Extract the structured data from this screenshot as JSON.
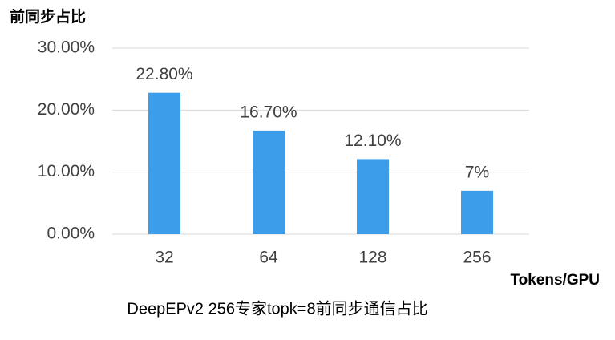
{
  "chart_data": {
    "type": "bar",
    "title": "前同步占比",
    "x_label": "Tokens/GPU",
    "caption": "DeepEPv2 256专家topk=8前同步通信占比",
    "categories": [
      "32",
      "64",
      "128",
      "256"
    ],
    "values": [
      22.8,
      16.7,
      12.1,
      7
    ],
    "value_labels": [
      "22.80%",
      "16.70%",
      "12.10%",
      "7%"
    ],
    "color": "#3c9eea",
    "ylim": [
      0,
      30
    ],
    "yticks": [
      {
        "value": 0,
        "label": "0.00%"
      },
      {
        "value": 10,
        "label": "10.00%"
      },
      {
        "value": 20,
        "label": "20.00%"
      },
      {
        "value": 30,
        "label": "30.00%"
      }
    ],
    "grid": true
  }
}
